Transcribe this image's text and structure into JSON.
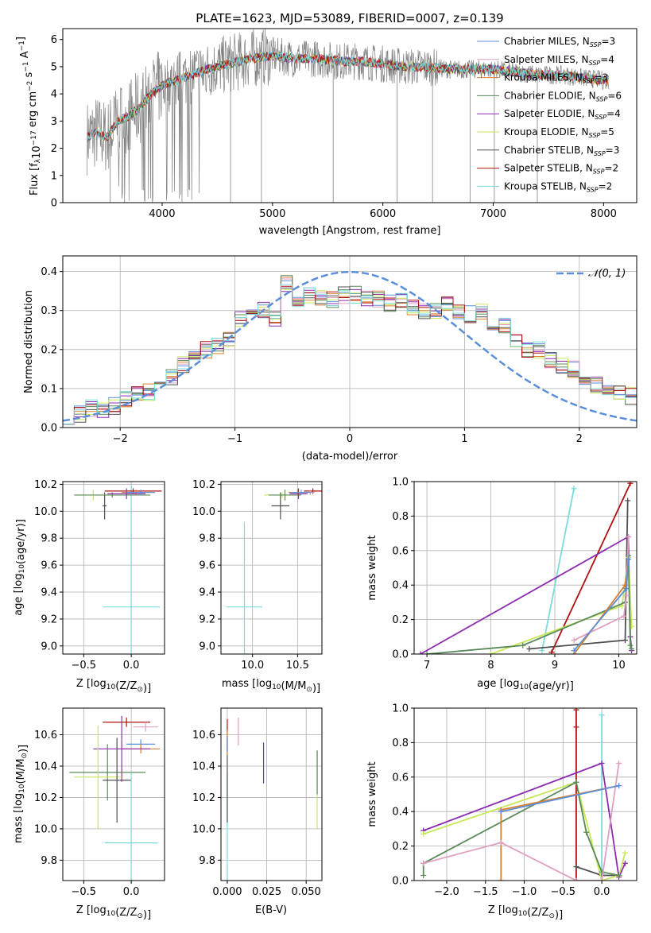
{
  "colors": {
    "Chabrier MILES": "#5b8fd9",
    "Salpeter MILES": "#e0a0c0",
    "Kroupa MILES": "#d97f30",
    "Chabrier ELODIE": "#5a8a5a",
    "Salpeter ELODIE": "#8c2db0",
    "Kroupa ELODIE": "#c8e85a",
    "Chabrier STELIB": "#505050",
    "Salpeter STELIB": "#b01010",
    "Kroupa STELIB": "#7adcdc",
    "normal": "#5b8fd9",
    "data": "#808080"
  },
  "chart_data": [
    {
      "id": "spectrum",
      "type": "line",
      "title": "PLATE=1623, MJD=53089, FIBERID=0007, z=0.139",
      "xlabel": "wavelength [Angstrom, rest frame]",
      "ylabel_parts": [
        "Flux [f",
        "λ",
        "10",
        "−17",
        " erg cm",
        "−2",
        " s",
        "−1",
        " A",
        "−1",
        "]"
      ],
      "xlim": [
        3100,
        8300
      ],
      "ylim": [
        0,
        6.4
      ],
      "xticks": [
        "4000",
        "5000",
        "6000",
        "7000",
        "8000"
      ],
      "yticks": [
        "0",
        "1",
        "2",
        "3",
        "4",
        "5",
        "6"
      ],
      "continuum_x": [
        3320,
        3400,
        3500,
        3600,
        3700,
        3800,
        3900,
        4000,
        4200,
        4400,
        4600,
        4800,
        5000,
        5200,
        5400,
        5600,
        5800,
        6000,
        6200,
        6400,
        6600,
        6800,
        7000,
        7200,
        7400,
        7600,
        7800,
        8000,
        8050
      ],
      "continuum_y": [
        2.4,
        2.6,
        2.4,
        3.0,
        3.2,
        3.5,
        4.0,
        4.3,
        4.6,
        4.9,
        5.1,
        5.3,
        5.4,
        5.3,
        5.3,
        5.2,
        5.2,
        5.1,
        5.0,
        5.0,
        4.9,
        4.9,
        4.9,
        4.8,
        4.7,
        4.7,
        4.6,
        4.5,
        4.5
      ],
      "legend": [
        {
          "prefix": "Chabrier MILES, N",
          "sub": "SSP",
          "suffix": "=3",
          "key": "Chabrier MILES"
        },
        {
          "prefix": "Salpeter MILES, N",
          "sub": "SSP",
          "suffix": "=4",
          "key": "Salpeter MILES"
        },
        {
          "prefix": "Kroupa MILES, N",
          "sub": "SSP",
          "suffix": "=3",
          "key": "Kroupa MILES"
        },
        {
          "prefix": "Chabrier ELODIE, N",
          "sub": "SSP",
          "suffix": "=6",
          "key": "Chabrier ELODIE"
        },
        {
          "prefix": "Salpeter ELODIE, N",
          "sub": "SSP",
          "suffix": "=4",
          "key": "Salpeter ELODIE"
        },
        {
          "prefix": "Kroupa ELODIE, N",
          "sub": "SSP",
          "suffix": "=5",
          "key": "Kroupa ELODIE"
        },
        {
          "prefix": "Chabrier STELIB, N",
          "sub": "SSP",
          "suffix": "=3",
          "key": "Chabrier STELIB"
        },
        {
          "prefix": "Salpeter STELIB, N",
          "sub": "SSP",
          "suffix": "=2",
          "key": "Salpeter STELIB"
        },
        {
          "prefix": "Kroupa STELIB, N",
          "sub": "SSP",
          "suffix": "=2",
          "key": "Kroupa STELIB"
        }
      ]
    },
    {
      "id": "residuals",
      "type": "histogram",
      "xlabel": "(data-model)/error",
      "ylabel": "Normed distribution",
      "xlim": [
        -2.5,
        2.5
      ],
      "ylim": [
        0,
        0.44
      ],
      "xticks": [
        -2,
        -1,
        0,
        1,
        2
      ],
      "xtick_labels": [
        "−2",
        "−1",
        "0",
        "1",
        "2"
      ],
      "yticks": [
        0,
        0.1,
        0.2,
        0.3,
        0.4
      ],
      "ytick_labels": [
        "0.0",
        "0.1",
        "0.2",
        "0.3",
        "0.4"
      ],
      "bin_width": 0.1,
      "approx_density": [
        0.03,
        0.035,
        0.05,
        0.048,
        0.055,
        0.07,
        0.085,
        0.09,
        0.11,
        0.13,
        0.16,
        0.18,
        0.2,
        0.21,
        0.23,
        0.28,
        0.29,
        0.3,
        0.28,
        0.37,
        0.32,
        0.34,
        0.33,
        0.33,
        0.34,
        0.34,
        0.33,
        0.33,
        0.32,
        0.33,
        0.31,
        0.3,
        0.3,
        0.32,
        0.3,
        0.29,
        0.3,
        0.24,
        0.26,
        0.22,
        0.2,
        0.2,
        0.17,
        0.16,
        0.15,
        0.13,
        0.11,
        0.1,
        0.09,
        0.08,
        0.07,
        0.06,
        0.05,
        0.045,
        0.04
      ],
      "gaussian_label": "𝒩(0, 1)"
    },
    {
      "id": "age-Z",
      "type": "scatter",
      "xlabel_parts": [
        "Z [log",
        "10",
        "(Z/Z",
        "⊙",
        ")]"
      ],
      "ylabel_parts": [
        "age  [log",
        "10",
        "(age/yr)]"
      ],
      "xlim": [
        -0.72,
        0.35
      ],
      "ylim": [
        8.94,
        10.22
      ],
      "xticks": [
        -0.5,
        0.0
      ],
      "xtick_labels": [
        "−0.5",
        "0.0"
      ],
      "yticks": [
        9.0,
        9.2,
        9.4,
        9.6,
        9.8,
        10.0,
        10.2
      ],
      "ytick_labels": [
        "9.0",
        "9.2",
        "9.4",
        "9.6",
        "9.8",
        "10.0",
        "10.2"
      ],
      "points": [
        {
          "key": "Kroupa STELIB",
          "x": 0.0,
          "xerr": 0.3,
          "y": 9.29,
          "yerr": 0.9
        },
        {
          "key": "Chabrier STELIB",
          "x": -0.28,
          "xerr": 0.02,
          "y": 10.04,
          "yerr": 0.1
        },
        {
          "key": "Kroupa ELODIE",
          "x": -0.4,
          "xerr": 0.2,
          "y": 10.12,
          "yerr": 0.04
        },
        {
          "key": "Chabrier ELODIE",
          "x": -0.2,
          "xerr": 0.4,
          "y": 10.12,
          "yerr": 0.02
        },
        {
          "key": "Salpeter STELIB",
          "x": 0.02,
          "xerr": 0.3,
          "y": 10.15,
          "yerr": 0.02
        },
        {
          "key": "Salpeter MILES",
          "x": 0.1,
          "xerr": 0.15,
          "y": 10.14,
          "yerr": 0.02
        },
        {
          "key": "Kroupa MILES",
          "x": 0.05,
          "xerr": 0.15,
          "y": 10.14,
          "yerr": 0.02
        },
        {
          "key": "Salpeter ELODIE",
          "x": -0.05,
          "xerr": 0.2,
          "y": 10.13,
          "yerr": 0.04
        },
        {
          "key": "Chabrier MILES",
          "x": 0.1,
          "xerr": 0.15,
          "y": 10.14,
          "yerr": 0.02
        }
      ]
    },
    {
      "id": "age-mass",
      "type": "scatter",
      "xlabel_parts": [
        "mass [log",
        "10",
        "(M/M",
        "⊙",
        ")]"
      ],
      "ylabel_parts": [],
      "xlim": [
        9.65,
        10.77
      ],
      "ylim": [
        8.94,
        10.22
      ],
      "xticks": [
        10.0,
        10.5
      ],
      "xtick_labels": [
        "10.0",
        "10.5"
      ],
      "yticks": [
        9.0,
        9.2,
        9.4,
        9.6,
        9.8,
        10.0,
        10.2
      ],
      "ytick_labels": [
        "9.0",
        "9.2",
        "9.4",
        "9.6",
        "9.8",
        "10.0",
        "10.2"
      ],
      "points": [
        {
          "key": "Kroupa STELIB",
          "x": 9.91,
          "xerr": 0.2,
          "y": 9.29,
          "yerr": 0.63
        },
        {
          "key": "Chabrier STELIB",
          "x": 10.31,
          "xerr": 0.1,
          "y": 10.04,
          "yerr": 0.1
        },
        {
          "key": "Kroupa ELODIE",
          "x": 10.33,
          "xerr": 0.2,
          "y": 10.12,
          "yerr": 0.02
        },
        {
          "key": "Chabrier ELODIE",
          "x": 10.36,
          "xerr": 0.18,
          "y": 10.12,
          "yerr": 0.04
        },
        {
          "key": "Salpeter STELIB",
          "x": 10.67,
          "xerr": 0.1,
          "y": 10.15,
          "yerr": 0.02
        },
        {
          "key": "Salpeter MILES",
          "x": 10.64,
          "xerr": 0.05,
          "y": 10.14,
          "yerr": 0.02
        },
        {
          "key": "Kroupa MILES",
          "x": 10.5,
          "xerr": 0.1,
          "y": 10.14,
          "yerr": 0.02
        },
        {
          "key": "Salpeter ELODIE",
          "x": 10.51,
          "xerr": 0.1,
          "y": 10.13,
          "yerr": 0.04
        },
        {
          "key": "Chabrier MILES",
          "x": 10.54,
          "xerr": 0.12,
          "y": 10.14,
          "yerr": 0.02
        }
      ]
    },
    {
      "id": "weight-age",
      "type": "line",
      "xlabel_parts": [
        "age  [log",
        "10",
        "(age/yr)]"
      ],
      "ylabel": "mass weight",
      "xlim": [
        6.8,
        10.28
      ],
      "ylim": [
        0,
        1.0
      ],
      "xticks": [
        7,
        8,
        9,
        10
      ],
      "xtick_labels": [
        "7",
        "8",
        "9",
        "10"
      ],
      "yticks": [
        0,
        0.2,
        0.4,
        0.6,
        0.8,
        1.0
      ],
      "ytick_labels": [
        "0.0",
        "0.2",
        "0.4",
        "0.6",
        "0.8",
        "1.0"
      ],
      "series": [
        {
          "key": "Kroupa STELIB",
          "x": [
            8.8,
            9.3
          ],
          "y": [
            0.02,
            0.96
          ]
        },
        {
          "key": "Salpeter STELIB",
          "x": [
            8.95,
            10.18
          ],
          "y": [
            0.01,
            0.99
          ]
        },
        {
          "key": "Chabrier STELIB",
          "x": [
            8.6,
            10.1,
            10.14
          ],
          "y": [
            0.03,
            0.08,
            0.89
          ]
        },
        {
          "key": "Salpeter ELODIE",
          "x": [
            6.9,
            10.15,
            10.18,
            10.2
          ],
          "y": [
            0.0,
            0.68,
            0.1,
            0.02
          ]
        },
        {
          "key": "Kroupa ELODIE",
          "x": [
            8.0,
            10.05,
            10.15,
            10.2
          ],
          "y": [
            0.0,
            0.28,
            0.56,
            0.16
          ]
        },
        {
          "key": "Chabrier ELODIE",
          "x": [
            7.0,
            8.5,
            10.1,
            10.15,
            10.18,
            10.2
          ],
          "y": [
            0.0,
            0.05,
            0.3,
            0.57,
            0.05,
            0.03
          ]
        },
        {
          "key": "Kroupa MILES",
          "x": [
            9.3,
            10.1,
            10.15
          ],
          "y": [
            0.0,
            0.4,
            0.55
          ]
        },
        {
          "key": "Salpeter MILES",
          "x": [
            9.3,
            10.08,
            10.12,
            10.15
          ],
          "y": [
            0.08,
            0.22,
            0.34,
            0.68
          ]
        },
        {
          "key": "Chabrier MILES",
          "x": [
            9.3,
            10.12,
            10.15
          ],
          "y": [
            0.02,
            0.38,
            0.55
          ]
        }
      ]
    },
    {
      "id": "mass-Z",
      "type": "scatter",
      "xlabel_parts": [
        "Z [log",
        "10",
        "(Z/Z",
        "⊙",
        ")]"
      ],
      "ylabel_parts": [
        "mass [log",
        "10",
        "(M/M",
        "⊙",
        ")]"
      ],
      "xlim": [
        -0.72,
        0.35
      ],
      "ylim": [
        9.67,
        10.77
      ],
      "xticks": [
        -0.5,
        0.0
      ],
      "xtick_labels": [
        "−0.5",
        "0.0"
      ],
      "yticks": [
        9.8,
        10.0,
        10.2,
        10.4,
        10.6
      ],
      "ytick_labels": [
        "9.8",
        "10.0",
        "10.2",
        "10.4",
        "10.6"
      ],
      "points": [
        {
          "key": "Salpeter STELIB",
          "x": -0.05,
          "xerr": 0.25,
          "y": 10.68,
          "yerr": 0.03
        },
        {
          "key": "Salpeter MILES",
          "x": 0.15,
          "xerr": 0.13,
          "y": 10.65,
          "yerr": 0.03
        },
        {
          "key": "Chabrier MILES",
          "x": 0.1,
          "xerr": 0.15,
          "y": 10.54,
          "yerr": 0.03
        },
        {
          "key": "Kroupa MILES",
          "x": 0.1,
          "xerr": 0.2,
          "y": 10.51,
          "yerr": 0.03
        },
        {
          "key": "Salpeter ELODIE",
          "x": -0.1,
          "xerr": 0.3,
          "y": 10.51,
          "yerr": 0.21
        },
        {
          "key": "Chabrier ELODIE",
          "x": -0.25,
          "xerr": 0.4,
          "y": 10.36,
          "yerr": 0.18
        },
        {
          "key": "Kroupa ELODIE",
          "x": -0.35,
          "xerr": 0.25,
          "y": 10.33,
          "yerr": 0.33
        },
        {
          "key": "Chabrier STELIB",
          "x": -0.15,
          "xerr": 0.15,
          "y": 10.31,
          "yerr": 0.27
        },
        {
          "key": "Kroupa STELIB",
          "x": 0.0,
          "xerr": 0.28,
          "y": 9.91,
          "yerr": 0.45
        }
      ]
    },
    {
      "id": "mass-EBV",
      "type": "scatter",
      "xlabel": "E(B-V)",
      "ylabel_parts": [],
      "xlim": [
        -0.004,
        0.06
      ],
      "ylim": [
        9.67,
        10.77
      ],
      "xticks": [
        0.0,
        0.025,
        0.05
      ],
      "xtick_labels": [
        "0.000",
        "0.025",
        "0.050"
      ],
      "yticks": [
        9.8,
        10.0,
        10.2,
        10.4,
        10.6
      ],
      "ytick_labels": [
        "9.8",
        "10.0",
        "10.2",
        "10.4",
        "10.6"
      ],
      "points": [
        {
          "key": "Kroupa STELIB",
          "x": 0.0,
          "y": 9.91,
          "yerr": 0.45
        },
        {
          "key": "Chabrier STELIB",
          "x": 0.0,
          "y": 10.31,
          "yerr": 0.27
        },
        {
          "key": "Salpeter STELIB",
          "x": 0.0,
          "y": 10.6,
          "yerr": 0.1
        },
        {
          "key": "Kroupa MILES",
          "x": 0.0,
          "y": 10.55,
          "yerr": 0.08
        },
        {
          "key": "Chabrier MILES",
          "x": 0.0,
          "y": 10.54,
          "yerr": 0.05
        },
        {
          "key": "Salpeter MILES",
          "x": 0.007,
          "y": 10.62,
          "yerr": 0.09
        },
        {
          "key": "Salpeter ELODIE",
          "x": 0.023,
          "y": 10.42,
          "yerr": 0.13
        },
        {
          "key": "Kroupa ELODIE",
          "x": 0.057,
          "y": 10.25,
          "yerr": 0.25
        },
        {
          "key": "Chabrier ELODIE",
          "x": 0.057,
          "y": 10.36,
          "yerr": 0.14
        }
      ]
    },
    {
      "id": "weight-Z",
      "type": "line",
      "xlabel_parts": [
        "Z [log",
        "10",
        "(Z/Z",
        "⊙",
        ")]"
      ],
      "ylabel": "mass weight",
      "xlim": [
        -2.42,
        0.45
      ],
      "ylim": [
        0,
        1.0
      ],
      "xticks": [
        -2.0,
        -1.5,
        -1.0,
        -0.5,
        0.0
      ],
      "xtick_labels": [
        "−2.0",
        "−1.5",
        "−1.0",
        "−0.5",
        "0.0"
      ],
      "yticks": [
        0,
        0.2,
        0.4,
        0.6,
        0.8,
        1.0
      ],
      "ytick_labels": [
        "0.0",
        "0.2",
        "0.4",
        "0.6",
        "0.8",
        "1.0"
      ],
      "series": [
        {
          "key": "Salpeter STELIB",
          "x": [
            -0.33,
            -0.33,
            -0.33
          ],
          "y": [
            0.0,
            0.89,
            0.99
          ]
        },
        {
          "key": "Kroupa STELIB",
          "x": [
            0.0,
            0.0
          ],
          "y": [
            0.04,
            0.96
          ]
        },
        {
          "key": "Chabrier STELIB",
          "x": [
            -0.33,
            0.0,
            0.22
          ],
          "y": [
            0.08,
            0.03,
            0.03
          ]
        },
        {
          "key": "Salpeter ELODIE",
          "x": [
            -2.3,
            0.0,
            0.22,
            0.3
          ],
          "y": [
            0.29,
            0.68,
            0.02,
            0.1
          ]
        },
        {
          "key": "Kroupa ELODIE",
          "x": [
            -2.3,
            -0.33,
            0.0,
            0.22,
            0.3
          ],
          "y": [
            0.27,
            0.57,
            0.0,
            0.03,
            0.16
          ]
        },
        {
          "key": "Chabrier ELODIE",
          "x": [
            -2.3,
            -2.3,
            -0.33,
            -0.2,
            0.0,
            0.22
          ],
          "y": [
            0.03,
            0.1,
            0.57,
            0.28,
            0.05,
            0.03
          ]
        },
        {
          "key": "Kroupa MILES",
          "x": [
            -1.3,
            -1.3,
            0.22
          ],
          "y": [
            0.0,
            0.41,
            0.55
          ]
        },
        {
          "key": "Salpeter MILES",
          "x": [
            -2.3,
            -1.3,
            -0.33,
            0.0,
            0.22
          ],
          "y": [
            0.1,
            0.22,
            0.0,
            0.0,
            0.68
          ]
        },
        {
          "key": "Chabrier MILES",
          "x": [
            -1.3,
            0.22
          ],
          "y": [
            0.4,
            0.55
          ]
        }
      ]
    }
  ]
}
